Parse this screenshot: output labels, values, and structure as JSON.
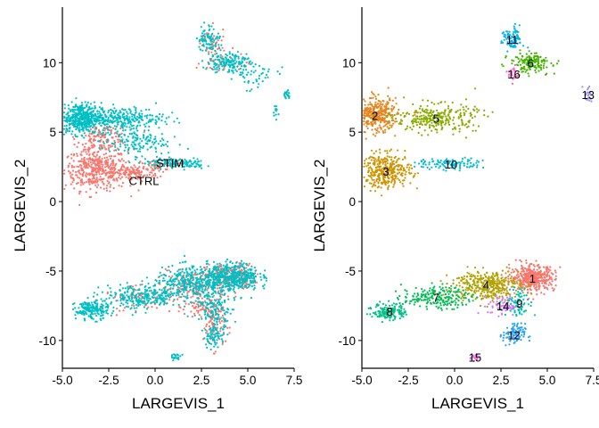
{
  "chart_data": [
    {
      "type": "scatter",
      "xlabel": "LARGEVIS_1",
      "ylabel": "LARGEVIS_2",
      "xlim": [
        -5.0,
        7.5
      ],
      "ylim": [
        -12.0,
        14.0
      ],
      "x_ticks": [
        "-5.0",
        "-2.5",
        "0.0",
        "2.5",
        "5.0",
        "7.5"
      ],
      "y_ticks": [
        "-10",
        "-5",
        "0",
        "5",
        "10"
      ],
      "grid": false,
      "legend": "none",
      "series": [
        {
          "name": "CTRL",
          "color": "#F8766D"
        },
        {
          "name": "STIM",
          "color": "#00BFC4"
        }
      ],
      "annotations": [
        {
          "text": "STIM",
          "x": 0.8,
          "y": 2.8
        },
        {
          "text": "CTRL",
          "x": -0.6,
          "y": 1.5
        }
      ]
    },
    {
      "type": "scatter",
      "xlabel": "LARGEVIS_1",
      "ylabel": "LARGEVIS_2",
      "xlim": [
        -5.0,
        7.5
      ],
      "ylim": [
        -12.0,
        14.0
      ],
      "x_ticks": [
        "-5.0",
        "-2.5",
        "0.0",
        "2.5",
        "5.0",
        "7.5"
      ],
      "y_ticks": [
        "-10",
        "-5",
        "0",
        "5",
        "10"
      ],
      "grid": false,
      "legend": "none",
      "clusters": [
        {
          "label": "1",
          "x": 4.2,
          "y": -5.5,
          "color": "#F8766D"
        },
        {
          "label": "2",
          "x": -4.3,
          "y": 6.2,
          "color": "#E7851E"
        },
        {
          "label": "3",
          "x": -3.7,
          "y": 2.2,
          "color": "#D09400"
        },
        {
          "label": "4",
          "x": 1.7,
          "y": -6.0,
          "color": "#B2A100"
        },
        {
          "label": "5",
          "x": -1.0,
          "y": 6.0,
          "color": "#89AC00"
        },
        {
          "label": "6",
          "x": 4.1,
          "y": 10.0,
          "color": "#45B500"
        },
        {
          "label": "7",
          "x": -1.0,
          "y": -6.9,
          "color": "#00BC51"
        },
        {
          "label": "8",
          "x": -3.5,
          "y": -7.9,
          "color": "#00C087"
        },
        {
          "label": "9",
          "x": 3.5,
          "y": -7.3,
          "color": "#00C0B2"
        },
        {
          "label": "10",
          "x": -0.2,
          "y": 2.7,
          "color": "#00BCD6"
        },
        {
          "label": "11",
          "x": 3.1,
          "y": 11.7,
          "color": "#00B3F2"
        },
        {
          "label": "12",
          "x": 3.2,
          "y": -9.6,
          "color": "#29A3FF"
        },
        {
          "label": "13",
          "x": 7.2,
          "y": 7.7,
          "color": "#9C8DFF"
        },
        {
          "label": "14",
          "x": 2.6,
          "y": -7.5,
          "color": "#D277FF"
        },
        {
          "label": "15",
          "x": 1.1,
          "y": -11.2,
          "color": "#F166E8"
        },
        {
          "label": "16",
          "x": 3.2,
          "y": 9.2,
          "color": "#FF61C7"
        }
      ]
    }
  ]
}
